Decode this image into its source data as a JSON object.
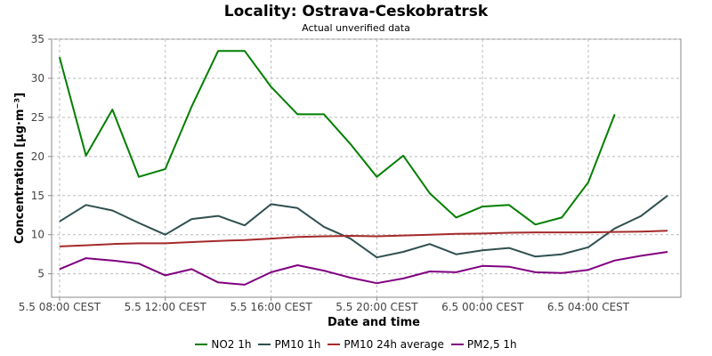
{
  "chart_data": {
    "type": "line",
    "title": "Locality: Ostrava-Ceskobratrsk",
    "subtitle": "Actual unverified data",
    "xlabel": "Date and time",
    "ylabel": "Concentration [µg·m⁻³]",
    "ylim": [
      2,
      35
    ],
    "yticks": [
      5,
      10,
      15,
      20,
      25,
      30,
      35
    ],
    "xlim": [
      -0.3,
      23.5
    ],
    "xticks": [
      {
        "x": 0,
        "label": "5.5 08:00 CEST"
      },
      {
        "x": 4,
        "label": "5.5 12:00 CEST"
      },
      {
        "x": 8,
        "label": "5.5 16:00 CEST"
      },
      {
        "x": 12,
        "label": "5.5 20:00 CEST"
      },
      {
        "x": 16,
        "label": "6.5 00:00 CEST"
      },
      {
        "x": 20,
        "label": "6.5 04:00 CEST"
      }
    ],
    "grid": true,
    "legend_position": "bottom",
    "series": [
      {
        "name": "NO2 1h",
        "color": "#007f00",
        "x": [
          0,
          1,
          2,
          3,
          4,
          5,
          6,
          7,
          8,
          9,
          10,
          11,
          12,
          13,
          14,
          15,
          16,
          17,
          18,
          19,
          20,
          21
        ],
        "values": [
          32.7,
          20.1,
          26.0,
          17.4,
          18.4,
          26.4,
          33.5,
          33.5,
          28.9,
          25.4,
          25.4,
          21.6,
          17.4,
          20.1,
          15.3,
          12.2,
          13.6,
          13.8,
          11.3,
          12.2,
          16.7,
          25.4
        ]
      },
      {
        "name": "PM10 1h",
        "color": "#2f4f4f",
        "x": [
          0,
          1,
          2,
          3,
          4,
          5,
          6,
          7,
          8,
          9,
          10,
          11,
          12,
          13,
          14,
          15,
          16,
          17,
          18,
          19,
          20,
          21,
          22,
          23
        ],
        "values": [
          11.7,
          13.8,
          13.1,
          11.5,
          10.0,
          12.0,
          12.4,
          11.2,
          13.9,
          13.4,
          11.0,
          9.5,
          7.1,
          7.8,
          8.8,
          7.5,
          8.0,
          8.3,
          7.2,
          7.5,
          8.4,
          10.8,
          12.4,
          15.0
        ]
      },
      {
        "name": "PM10 24h average",
        "color": "#a52a2a",
        "x": [
          0,
          1,
          2,
          3,
          4,
          5,
          6,
          7,
          8,
          9,
          10,
          11,
          12,
          13,
          14,
          15,
          16,
          17,
          18,
          19,
          20,
          21,
          22,
          23
        ],
        "values": [
          8.5,
          8.65,
          8.8,
          8.9,
          8.9,
          9.05,
          9.2,
          9.3,
          9.5,
          9.7,
          9.8,
          9.85,
          9.8,
          9.9,
          10.0,
          10.1,
          10.15,
          10.25,
          10.3,
          10.3,
          10.3,
          10.35,
          10.4,
          10.5
        ]
      },
      {
        "name": "PM2,5 1h",
        "color": "#800080",
        "x": [
          0,
          1,
          2,
          3,
          4,
          5,
          6,
          7,
          8,
          9,
          10,
          11,
          12,
          13,
          14,
          15,
          16,
          17,
          18,
          19,
          20,
          21,
          22,
          23
        ],
        "values": [
          5.6,
          7.0,
          6.7,
          6.3,
          4.8,
          5.6,
          3.9,
          3.6,
          5.2,
          6.1,
          5.4,
          4.5,
          3.8,
          4.4,
          5.3,
          5.2,
          6.0,
          5.9,
          5.2,
          5.1,
          5.5,
          6.7,
          7.3,
          7.8
        ]
      }
    ]
  }
}
